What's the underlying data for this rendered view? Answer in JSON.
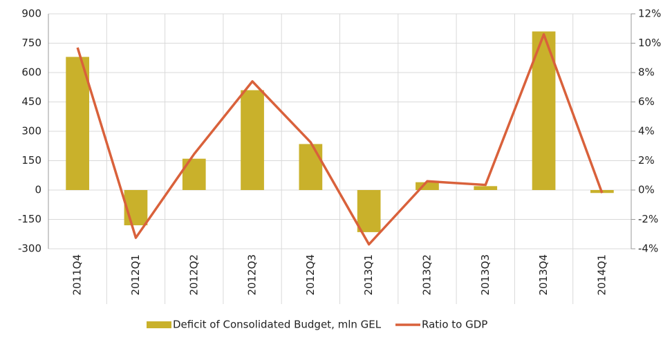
{
  "chart_data": {
    "type": "bar_line",
    "categories": [
      "2011Q4",
      "2012Q1",
      "2012Q2",
      "2012Q3",
      "2012Q4",
      "2013Q1",
      "2013Q2",
      "2013Q3",
      "2013Q4",
      "2014Q1"
    ],
    "series": [
      {
        "name": "Deficit of Consolidated Budget, mln GEL",
        "type": "bar",
        "color": "#c9b12b",
        "values": [
          680,
          -180,
          160,
          510,
          235,
          -215,
          40,
          20,
          810,
          -15
        ]
      },
      {
        "name": "Ratio to GDP",
        "type": "line",
        "axis": "y2",
        "color": "#d9613b",
        "values": [
          9.7,
          -3.25,
          2.45,
          7.4,
          3.25,
          -3.7,
          0.6,
          0.35,
          10.6,
          -0.2
        ]
      }
    ],
    "ylim": [
      -300,
      900
    ],
    "yticks": [
      -300,
      -150,
      0,
      150,
      300,
      450,
      600,
      750,
      900
    ],
    "y2lim": [
      -4,
      12
    ],
    "y2ticks": [
      {
        "value": -4,
        "label": "-4%"
      },
      {
        "value": -2,
        "label": "-2%"
      },
      {
        "value": 0,
        "label": "0%"
      },
      {
        "value": 2,
        "label": "2%"
      },
      {
        "value": 4,
        "label": "4%"
      },
      {
        "value": 6,
        "label": "6%"
      },
      {
        "value": 8,
        "label": "8%"
      },
      {
        "value": 10,
        "label": "10%"
      },
      {
        "value": 12,
        "label": "12%"
      }
    ],
    "grid": true,
    "legend": "bottom"
  }
}
